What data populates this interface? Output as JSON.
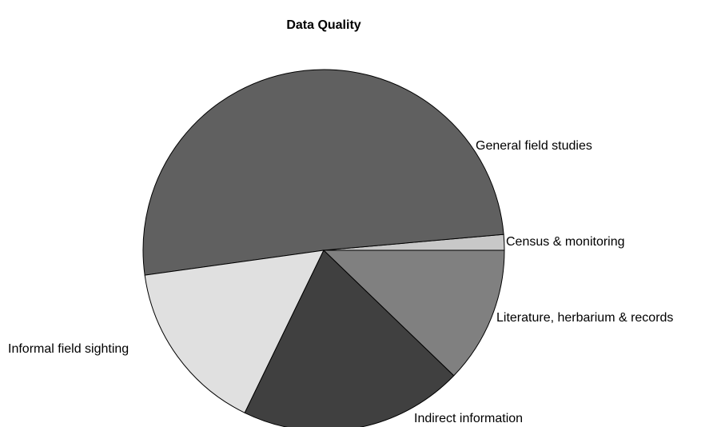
{
  "chart_data": {
    "type": "pie",
    "title": "Data Quality",
    "categories": [
      "Census & monitoring",
      "General field studies",
      "Informal field sighting",
      "Indirect information",
      "Literature, herbarium & records"
    ],
    "values": [
      1.4,
      50.8,
      15.6,
      20,
      12.2
    ],
    "colors": [
      "#c8c8c8",
      "#606060",
      "#e0e0e0",
      "#404040",
      "#808080"
    ]
  }
}
